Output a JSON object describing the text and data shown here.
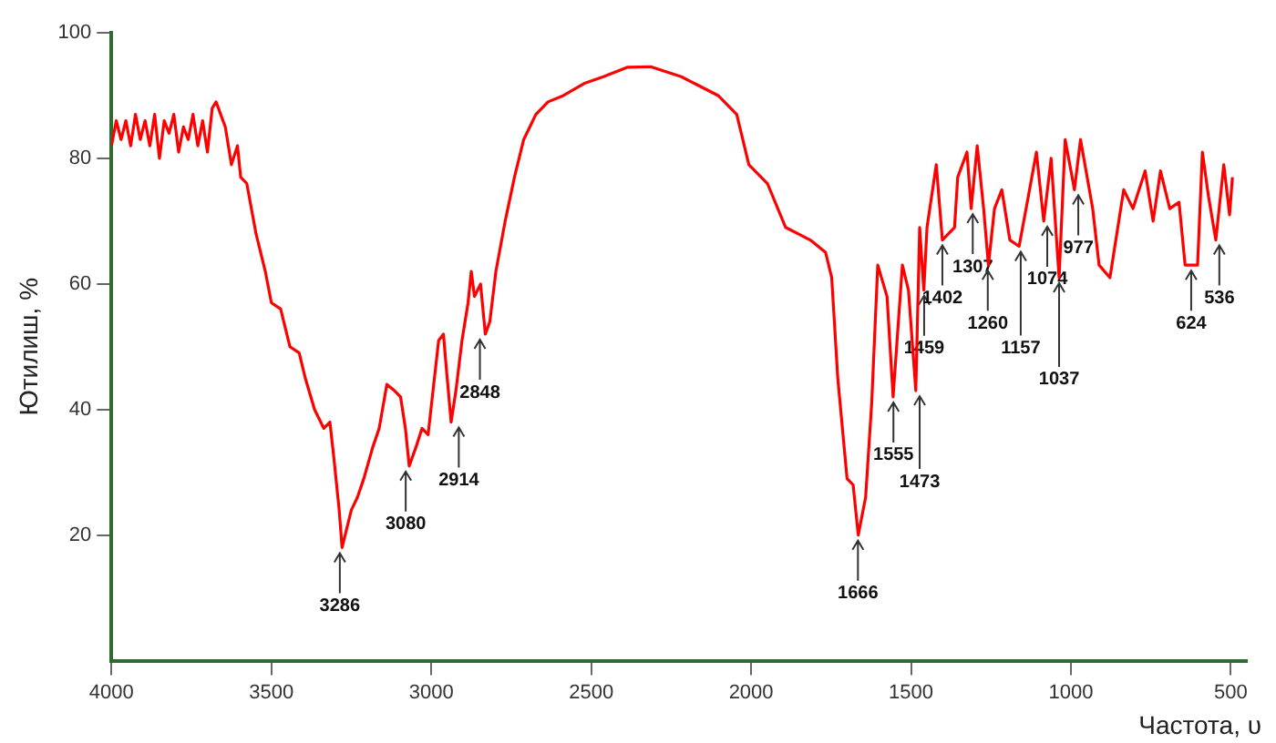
{
  "chart_data": {
    "type": "line",
    "xlabel": "Частота, υ",
    "ylabel": "Ютилиш, %",
    "xlim": [
      4000,
      450
    ],
    "xticks": [
      4000,
      3500,
      3000,
      2500,
      2000,
      1500,
      1000,
      500
    ],
    "ylim": [
      0,
      100
    ],
    "yticks": [
      20,
      40,
      60,
      80,
      100
    ],
    "grid": false,
    "legend": false,
    "marker": "none",
    "line_style": "solid",
    "series": [
      {
        "color": "#ff0000",
        "x": [
          4000,
          3985,
          3970,
          3955,
          3940,
          3925,
          3910,
          3895,
          3880,
          3865,
          3850,
          3835,
          3820,
          3805,
          3790,
          3775,
          3760,
          3745,
          3730,
          3715,
          3700,
          3685,
          3673,
          3644,
          3625,
          3606,
          3596,
          3577,
          3548,
          3519,
          3500,
          3471,
          3442,
          3413,
          3394,
          3365,
          3336,
          3317,
          3304,
          3288,
          3279,
          3250,
          3231,
          3211,
          3183,
          3163,
          3139,
          3115,
          3096,
          3081,
          3069,
          3048,
          3029,
          3010,
          2977,
          2962,
          2952,
          2938,
          2923,
          2904,
          2885,
          2875,
          2865,
          2846,
          2831,
          2817,
          2798,
          2769,
          2740,
          2711,
          2673,
          2635,
          2587,
          2519,
          2462,
          2388,
          2314,
          2218,
          2103,
          2045,
          2007,
          1949,
          1892,
          1815,
          1767,
          1748,
          1729,
          1700,
          1681,
          1665,
          1642,
          1623,
          1604,
          1575,
          1556,
          1527,
          1508,
          1485,
          1473,
          1460,
          1450,
          1421,
          1402,
          1364,
          1354,
          1325,
          1312,
          1293,
          1273,
          1258,
          1239,
          1216,
          1191,
          1162,
          1133,
          1108,
          1085,
          1062,
          1037,
          1018,
          989,
          970,
          932,
          912,
          878,
          835,
          806,
          768,
          743,
          720,
          691,
          662,
          643,
          604,
          589,
          570,
          547,
          522,
          504,
          495
        ],
        "values": [
          82,
          86,
          83,
          86,
          82,
          87,
          83,
          86,
          82,
          87,
          80,
          86,
          84,
          87,
          81,
          85,
          83,
          87,
          82,
          86,
          81,
          88,
          89,
          85,
          79,
          82,
          77,
          76,
          68,
          62,
          57,
          56,
          50,
          49,
          45,
          40,
          37,
          38,
          32,
          24,
          18,
          24,
          26,
          29,
          34,
          37,
          44,
          43,
          42,
          37,
          31,
          34,
          37,
          36,
          51,
          52,
          46,
          38,
          43,
          51,
          57,
          62,
          58,
          60,
          52,
          54,
          62,
          70,
          77,
          83,
          87,
          89,
          90,
          92,
          93,
          94.5,
          94.6,
          93,
          90,
          87,
          79,
          76,
          69,
          67,
          65,
          61,
          45,
          29,
          28,
          20,
          26,
          41,
          63,
          58,
          42,
          63,
          59,
          43,
          69,
          59,
          69,
          79,
          67,
          69,
          77,
          81,
          72,
          82,
          72,
          63,
          72,
          75,
          67,
          66,
          74,
          81,
          70,
          80,
          61,
          83,
          75,
          83,
          72,
          63,
          61,
          75,
          72,
          78,
          70,
          78,
          72,
          73,
          63,
          63,
          81,
          74,
          67,
          79,
          71,
          77
        ]
      }
    ],
    "annotations": [
      {
        "text": "3286",
        "x": 3286,
        "y": 18
      },
      {
        "text": "3080",
        "x": 3080,
        "y": 31
      },
      {
        "text": "2914",
        "x": 2914,
        "y": 38
      },
      {
        "text": "2848",
        "x": 2848,
        "y": 52
      },
      {
        "text": "1666",
        "x": 1666,
        "y": 20
      },
      {
        "text": "1555",
        "x": 1555,
        "y": 42
      },
      {
        "text": "1473",
        "x": 1473,
        "y": 43
      },
      {
        "text": "1459",
        "x": 1459,
        "y": 59
      },
      {
        "text": "1402",
        "x": 1402,
        "y": 67
      },
      {
        "text": "1307",
        "x": 1307,
        "y": 72
      },
      {
        "text": "1260",
        "x": 1260,
        "y": 63
      },
      {
        "text": "1157",
        "x": 1157,
        "y": 66
      },
      {
        "text": "1074",
        "x": 1074,
        "y": 70
      },
      {
        "text": "1037",
        "x": 1037,
        "y": 61
      },
      {
        "text": "977",
        "x": 977,
        "y": 75
      },
      {
        "text": "624",
        "x": 624,
        "y": 63
      },
      {
        "text": "536",
        "x": 536,
        "y": 67
      }
    ]
  }
}
